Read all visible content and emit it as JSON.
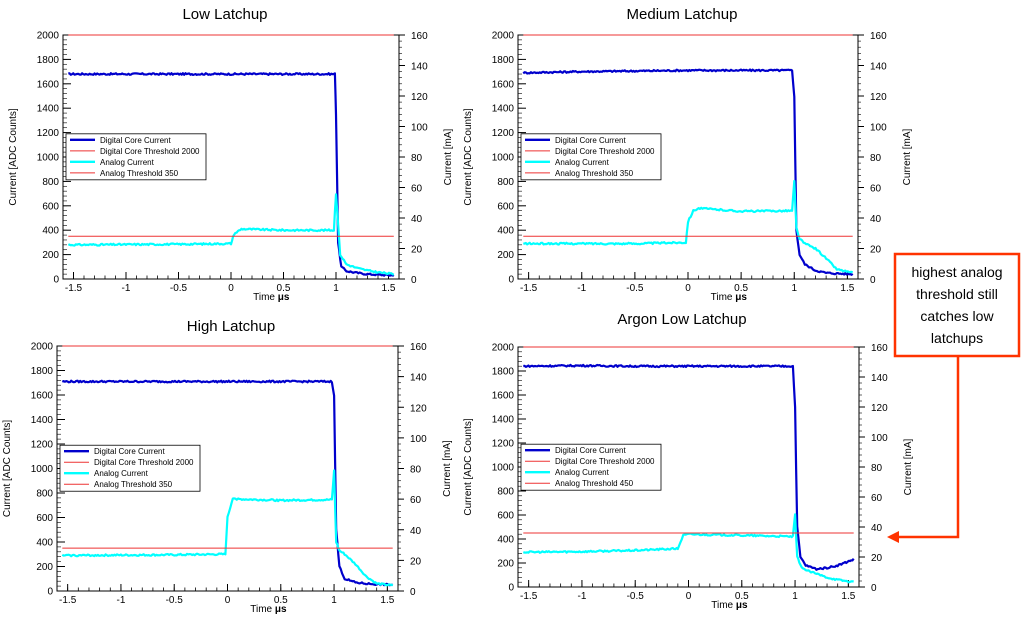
{
  "chart_data": [
    {
      "type": "line",
      "title": "Low Latchup",
      "xlabel": "Time",
      "xunit": "μs",
      "ylabel": "Current [ADC Counts]",
      "y2label": "Current [mA]",
      "xlim": [
        -1.6,
        1.6
      ],
      "ylim": [
        0,
        2000
      ],
      "y2lim": [
        0,
        160
      ],
      "xticks": [
        -1.5,
        -1,
        -0.5,
        0,
        0.5,
        1,
        1.5
      ],
      "xticklabels": [
        "-1.5",
        "-1",
        "-0.5",
        "0",
        "0.5",
        "1",
        "1.5"
      ],
      "yticks": [
        0,
        200,
        400,
        600,
        800,
        1000,
        1200,
        1400,
        1600,
        1800,
        2000
      ],
      "yticklabels": [
        "0",
        "200",
        "400",
        "600",
        "800",
        "1000",
        "1200",
        "1400",
        "1600",
        "1800",
        "2000"
      ],
      "y2ticks": [
        0,
        20,
        40,
        60,
        80,
        100,
        120,
        140,
        160
      ],
      "y2ticklabels": [
        "0",
        "20",
        "40",
        "60",
        "80",
        "100",
        "120",
        "140",
        "160"
      ],
      "legend_position": "middle-left",
      "series": [
        {
          "name": "Digital Core Current",
          "color": "#0000cc",
          "x": [
            -1.55,
            -1.0,
            0.0,
            0.5,
            0.99,
            1.0,
            1.02,
            1.05,
            1.1,
            1.2,
            1.3,
            1.4,
            1.55
          ],
          "y": [
            1680,
            1680,
            1680,
            1680,
            1680,
            1350,
            300,
            100,
            65,
            50,
            40,
            35,
            30
          ]
        },
        {
          "name": "Digital Core Threshold 2000",
          "color": "#ee3333",
          "x": [
            -1.55,
            1.55
          ],
          "y": [
            2000,
            2000
          ]
        },
        {
          "name": "Analog Current",
          "color": "#00ffff",
          "x": [
            -1.55,
            -0.5,
            0.0,
            0.03,
            0.1,
            0.5,
            0.98,
            1.0,
            1.02,
            1.04,
            1.1,
            1.2,
            1.3,
            1.4,
            1.55
          ],
          "y": [
            280,
            285,
            290,
            370,
            410,
            400,
            400,
            700,
            450,
            200,
            120,
            90,
            70,
            55,
            40
          ]
        },
        {
          "name": "Analog Threshold 350",
          "color": "#ee3333",
          "x": [
            -1.55,
            1.55
          ],
          "y": [
            350,
            350
          ]
        }
      ]
    },
    {
      "type": "line",
      "title": "Medium Latchup",
      "xlabel": "Time",
      "xunit": "μs",
      "ylabel": "Current [ADC Counts]",
      "y2label": "Current [mA]",
      "xlim": [
        -1.6,
        1.6
      ],
      "ylim": [
        0,
        2000
      ],
      "y2lim": [
        0,
        160
      ],
      "xticks": [
        -1.5,
        -1,
        -0.5,
        0,
        0.5,
        1,
        1.5
      ],
      "xticklabels": [
        "-1.5",
        "-1",
        "-0.5",
        "0",
        "0.5",
        "1",
        "1.5"
      ],
      "yticks": [
        0,
        200,
        400,
        600,
        800,
        1000,
        1200,
        1400,
        1600,
        1800,
        2000
      ],
      "yticklabels": [
        "0",
        "200",
        "400",
        "600",
        "800",
        "1000",
        "1200",
        "1400",
        "1600",
        "1800",
        "2000"
      ],
      "y2ticks": [
        0,
        20,
        40,
        60,
        80,
        100,
        120,
        140,
        160
      ],
      "y2ticklabels": [
        "0",
        "20",
        "40",
        "60",
        "80",
        "100",
        "120",
        "140",
        "160"
      ],
      "legend_position": "middle-left",
      "series": [
        {
          "name": "Digital Core Current",
          "color": "#0000cc",
          "x": [
            -1.55,
            -1.0,
            -0.5,
            0.0,
            0.5,
            0.98,
            1.0,
            1.02,
            1.05,
            1.1,
            1.2,
            1.3,
            1.4,
            1.55
          ],
          "y": [
            1690,
            1700,
            1705,
            1710,
            1710,
            1710,
            1500,
            400,
            200,
            120,
            70,
            50,
            45,
            40
          ]
        },
        {
          "name": "Digital Core Threshold 2000",
          "color": "#ee3333",
          "x": [
            -1.55,
            1.55
          ],
          "y": [
            2000,
            2000
          ]
        },
        {
          "name": "Analog Current",
          "color": "#00ffff",
          "x": [
            -1.55,
            -0.5,
            -0.02,
            0.0,
            0.05,
            0.1,
            0.5,
            0.98,
            1.0,
            1.02,
            1.05,
            1.1,
            1.2,
            1.3,
            1.4,
            1.55
          ],
          "y": [
            290,
            290,
            300,
            470,
            560,
            580,
            555,
            560,
            800,
            420,
            330,
            290,
            250,
            170,
            80,
            50
          ]
        },
        {
          "name": "Analog Threshold 350",
          "color": "#ee3333",
          "x": [
            -1.55,
            1.55
          ],
          "y": [
            350,
            350
          ]
        }
      ]
    },
    {
      "type": "line",
      "title": "High Latchup",
      "xlabel": "Time",
      "xunit": "μs",
      "ylabel": "Current [ADC Counts]",
      "y2label": "Current [mA]",
      "xlim": [
        -1.6,
        1.6
      ],
      "ylim": [
        0,
        2000
      ],
      "y2lim": [
        0,
        160
      ],
      "xticks": [
        -1.5,
        -1,
        -0.5,
        0,
        0.5,
        1,
        1.5
      ],
      "xticklabels": [
        "-1.5",
        "-1",
        "-0.5",
        "0",
        "0.5",
        "1",
        "1.5"
      ],
      "yticks": [
        0,
        200,
        400,
        600,
        800,
        1000,
        1200,
        1400,
        1600,
        1800,
        2000
      ],
      "yticklabels": [
        "0",
        "200",
        "400",
        "600",
        "800",
        "1000",
        "1200",
        "1400",
        "1600",
        "1800",
        "2000"
      ],
      "y2ticks": [
        0,
        20,
        40,
        60,
        80,
        100,
        120,
        140,
        160
      ],
      "y2ticklabels": [
        "0",
        "20",
        "40",
        "60",
        "80",
        "100",
        "120",
        "140",
        "160"
      ],
      "legend_position": "middle-left",
      "series": [
        {
          "name": "Digital Core Current",
          "color": "#0000cc",
          "x": [
            -1.55,
            -1.0,
            0.0,
            0.5,
            0.98,
            1.0,
            1.02,
            1.05,
            1.1,
            1.2,
            1.3,
            1.4,
            1.55
          ],
          "y": [
            1710,
            1710,
            1710,
            1710,
            1710,
            1600,
            500,
            200,
            100,
            70,
            60,
            55,
            50
          ]
        },
        {
          "name": "Digital Core Threshold 2000",
          "color": "#ee3333",
          "x": [
            -1.55,
            1.55
          ],
          "y": [
            2000,
            2000
          ]
        },
        {
          "name": "Analog Current",
          "color": "#00ffff",
          "x": [
            -1.55,
            -0.5,
            -0.02,
            0.0,
            0.05,
            0.1,
            0.5,
            0.98,
            1.0,
            1.02,
            1.05,
            1.1,
            1.2,
            1.3,
            1.4,
            1.55
          ],
          "y": [
            290,
            295,
            300,
            600,
            760,
            750,
            740,
            745,
            980,
            400,
            330,
            300,
            220,
            120,
            60,
            45
          ]
        },
        {
          "name": "Analog Threshold 350",
          "color": "#ee3333",
          "x": [
            -1.55,
            1.55
          ],
          "y": [
            350,
            350
          ]
        }
      ]
    },
    {
      "type": "line",
      "title": "Argon Low Latchup",
      "xlabel": "Time",
      "xunit": "μs",
      "ylabel": "Current [ADC Counts]",
      "y2label": "Current [mA]",
      "xlim": [
        -1.6,
        1.6
      ],
      "ylim": [
        0,
        2000
      ],
      "y2lim": [
        0,
        160
      ],
      "xticks": [
        -1.5,
        -1,
        -0.5,
        0,
        0.5,
        1,
        1.5
      ],
      "xticklabels": [
        "-1.5",
        "-1",
        "-0.5",
        "0",
        "0.5",
        "1",
        "1.5"
      ],
      "yticks": [
        0,
        200,
        400,
        600,
        800,
        1000,
        1200,
        1400,
        1600,
        1800,
        2000
      ],
      "yticklabels": [
        "0",
        "200",
        "400",
        "600",
        "800",
        "1000",
        "1200",
        "1400",
        "1600",
        "1800",
        "2000"
      ],
      "y2ticks": [
        0,
        20,
        40,
        60,
        80,
        100,
        120,
        140,
        160
      ],
      "y2ticklabels": [
        "0",
        "20",
        "40",
        "60",
        "80",
        "100",
        "120",
        "140",
        "160"
      ],
      "legend_position": "middle-left",
      "series": [
        {
          "name": "Digital Core Current",
          "color": "#0000cc",
          "x": [
            -1.55,
            -1.0,
            -0.5,
            0.0,
            0.5,
            0.98,
            1.0,
            1.02,
            1.05,
            1.1,
            1.2,
            1.3,
            1.4,
            1.55
          ],
          "y": [
            1840,
            1845,
            1840,
            1840,
            1840,
            1840,
            1500,
            500,
            250,
            180,
            150,
            160,
            180,
            230
          ]
        },
        {
          "name": "Digital Core Threshold 2000",
          "color": "#ee3333",
          "x": [
            -1.55,
            1.55
          ],
          "y": [
            2000,
            2000
          ]
        },
        {
          "name": "Analog Current",
          "color": "#00ffff",
          "x": [
            -1.55,
            -1.0,
            -0.5,
            -0.1,
            -0.05,
            0.0,
            0.5,
            0.98,
            1.0,
            1.02,
            1.05,
            1.1,
            1.2,
            1.3,
            1.4,
            1.55
          ],
          "y": [
            290,
            295,
            305,
            320,
            430,
            440,
            430,
            420,
            600,
            250,
            180,
            140,
            110,
            80,
            60,
            40
          ]
        },
        {
          "name": "Analog Threshold 450",
          "color": "#ee3333",
          "x": [
            -1.55,
            1.55
          ],
          "y": [
            450,
            450
          ]
        }
      ]
    }
  ],
  "callout": {
    "lines": [
      "highest analog",
      "threshold still",
      "catches low",
      "latchups"
    ],
    "border_color": "#ff3300"
  }
}
